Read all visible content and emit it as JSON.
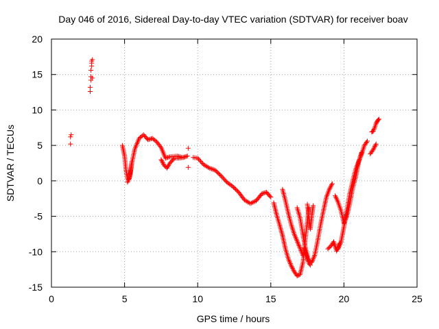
{
  "chart_data": {
    "type": "scatter",
    "title": "Day 046 of 2016, Sidereal Day-to-day VTEC variation (SDTVAR) for receiver boav",
    "xlabel": "GPS time / hours",
    "ylabel": "SDTVAR / TECUs",
    "xlim": [
      0,
      25
    ],
    "ylim": [
      -15,
      20
    ],
    "xticks": [
      "0",
      "5",
      "10",
      "15",
      "20",
      "25"
    ],
    "yticks": [
      "20",
      "15",
      "10",
      "5",
      "0",
      "-5",
      "-10",
      "-15"
    ],
    "grid": true,
    "marker": "+",
    "color": "#ff0000",
    "isolated_points": {
      "x": [
        1.3,
        1.3,
        1.35,
        2.65,
        2.65,
        2.7,
        2.7,
        2.7,
        2.75,
        2.75,
        2.75,
        2.8,
        2.8,
        9.35,
        9.35
      ],
      "y": [
        5.2,
        6.2,
        6.5,
        12.6,
        13.2,
        14.2,
        14.7,
        15.6,
        16.2,
        16.6,
        16.9,
        17.1,
        14.5,
        4.6,
        1.9
      ]
    },
    "tracks": [
      {
        "x": [
          4.85,
          5.0,
          5.1,
          5.2,
          5.3,
          5.4,
          5.5
        ],
        "y": [
          5.0,
          3.5,
          1.5,
          0.3,
          0.2,
          1.2,
          2.7
        ]
      },
      {
        "x": [
          5.2,
          5.35,
          5.5,
          5.7,
          6.0,
          6.3,
          6.6,
          6.9,
          7.2,
          7.5,
          7.8,
          8.1,
          8.6,
          9.0,
          9.3
        ],
        "y": [
          -0.2,
          0.5,
          2.5,
          4.5,
          6.0,
          6.5,
          5.8,
          6.0,
          5.5,
          4.7,
          3.2,
          3.4,
          3.5,
          3.3,
          3.5
        ]
      },
      {
        "x": [
          7.5,
          7.7,
          7.9,
          8.1,
          8.4,
          8.7,
          9.0
        ],
        "y": [
          3.0,
          2.2,
          1.8,
          2.5,
          3.2,
          3.2,
          3.3
        ]
      },
      {
        "x": [
          9.7,
          10.0,
          10.4,
          10.8,
          11.2,
          11.6,
          12.0,
          12.4,
          12.8,
          13.2,
          13.6,
          14.0,
          14.4,
          14.7,
          15.0
        ],
        "y": [
          3.3,
          3.2,
          2.3,
          1.8,
          1.5,
          0.7,
          -0.2,
          -0.8,
          -1.6,
          -2.7,
          -3.2,
          -2.8,
          -1.8,
          -1.6,
          -2.3
        ]
      },
      {
        "x": [
          15.2,
          15.4,
          15.6,
          15.8,
          16.0,
          16.2,
          16.4,
          16.6,
          16.8,
          17.0,
          17.2,
          17.4,
          17.6
        ],
        "y": [
          -3.1,
          -4.8,
          -6.2,
          -7.7,
          -9.6,
          -11.0,
          -12.0,
          -12.8,
          -13.4,
          -13.2,
          -11.5,
          -7.5,
          -3.8
        ]
      },
      {
        "x": [
          15.8,
          16.0,
          16.2,
          16.4,
          16.6,
          16.8,
          17.0,
          17.2
        ],
        "y": [
          -1.2,
          -2.8,
          -4.6,
          -6.2,
          -7.5,
          -8.5,
          -9.5,
          -10.5
        ]
      },
      {
        "x": [
          16.8,
          17.0,
          17.2,
          17.4,
          17.6,
          17.8,
          18.0,
          18.2,
          18.4,
          18.6,
          18.8,
          19.0,
          19.2
        ],
        "y": [
          -3.8,
          -5.2,
          -7.6,
          -9.8,
          -11.3,
          -11.5,
          -10.5,
          -8.5,
          -6.2,
          -4.2,
          -2.3,
          -1.2,
          -0.4
        ]
      },
      {
        "x": [
          17.3,
          17.4,
          17.5,
          17.6,
          17.7
        ],
        "y": [
          -9.5,
          -10.3,
          -11.0,
          -11.6,
          -11.9
        ]
      },
      {
        "x": [
          17.5,
          17.6,
          17.7,
          17.8,
          17.9
        ],
        "y": [
          -3.3,
          -5.2,
          -6.8,
          -5.0,
          -3.5
        ]
      },
      {
        "x": [
          18.9,
          19.1,
          19.3,
          19.5,
          19.7
        ],
        "y": [
          -9.6,
          -9.2,
          -8.6,
          -9.9,
          -8.8
        ]
      },
      {
        "x": [
          19.4,
          19.6,
          19.8,
          20.0,
          20.2,
          20.4,
          20.6,
          20.8,
          21.0,
          21.2
        ],
        "y": [
          -2.1,
          -3.0,
          -4.2,
          -6.0,
          -5.0,
          -3.2,
          -1.0,
          0.5,
          2.6,
          4.0
        ]
      },
      {
        "x": [
          19.6,
          19.8,
          20.0,
          20.2,
          20.4,
          20.6,
          20.8,
          21.0,
          21.2,
          21.4,
          21.6
        ],
        "y": [
          -9.6,
          -8.6,
          -6.5,
          -4.1,
          -1.8,
          0.0,
          1.6,
          2.7,
          3.7,
          5.0,
          5.6
        ]
      },
      {
        "x": [
          21.8,
          22.0,
          22.2
        ],
        "y": [
          3.8,
          4.4,
          5.2
        ]
      },
      {
        "x": [
          21.9,
          22.0,
          22.1,
          22.2,
          22.3,
          22.4
        ],
        "y": [
          6.9,
          7.0,
          7.5,
          8.1,
          8.5,
          8.7
        ]
      }
    ]
  }
}
